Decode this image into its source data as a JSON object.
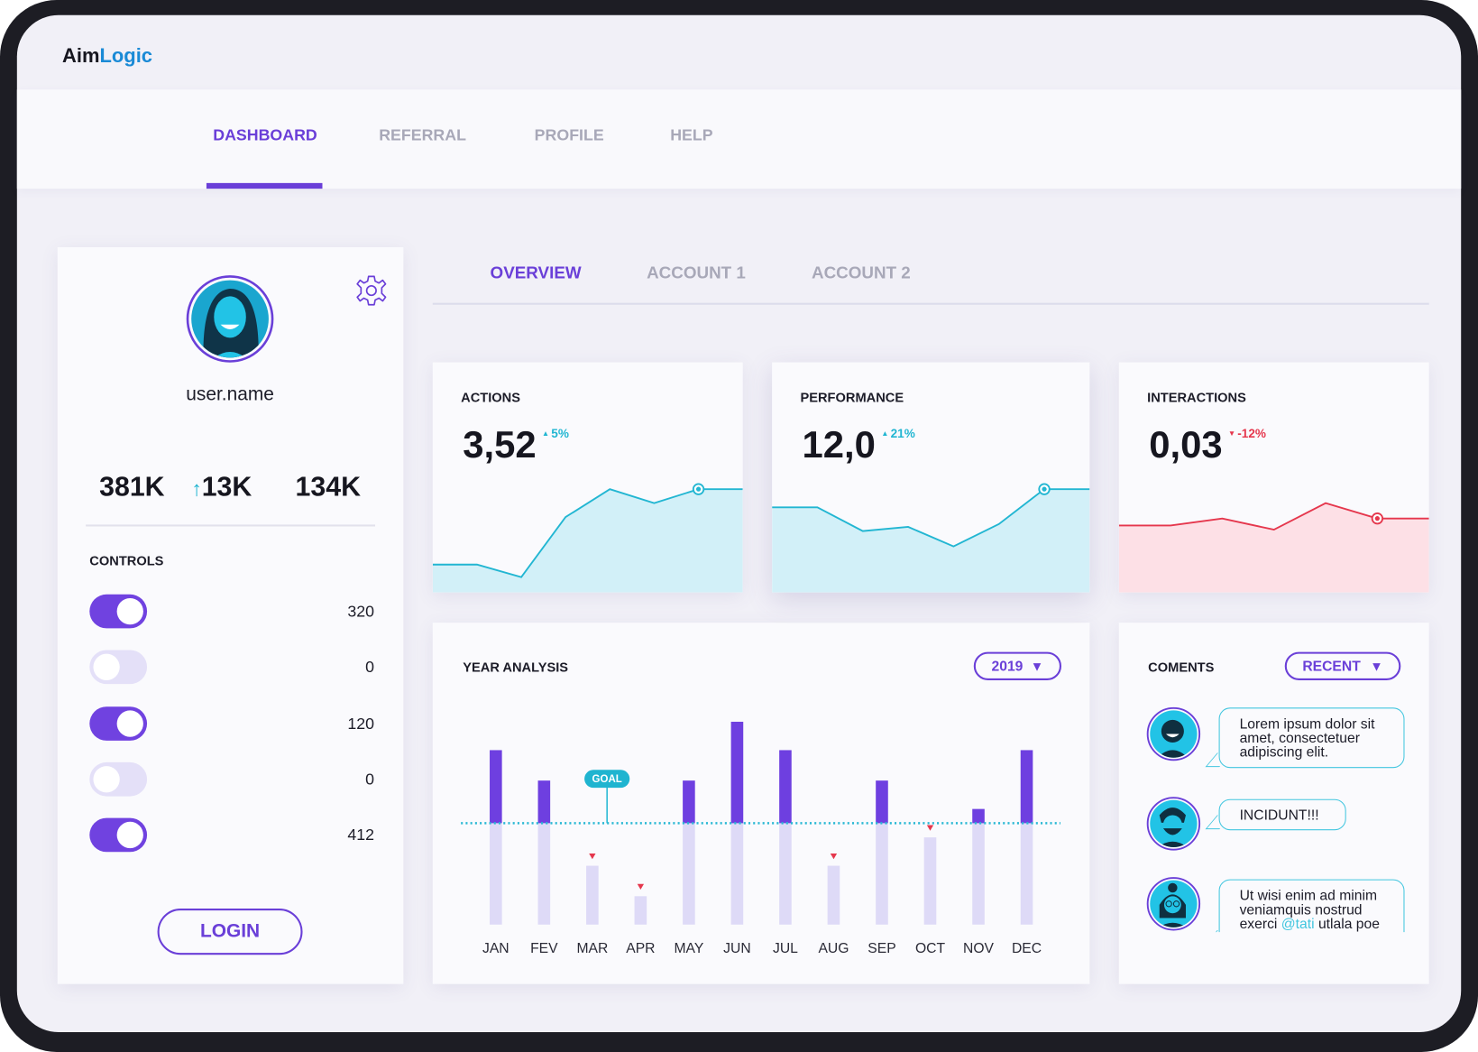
{
  "brand": {
    "part1": "Aim",
    "part2": "Logic"
  },
  "nav": {
    "items": [
      "DASHBOARD",
      "REFERRAL",
      "PROFILE",
      "HELP"
    ],
    "active": 0
  },
  "profile": {
    "username": "user.name",
    "stats": [
      "381K",
      "13K",
      "134K"
    ],
    "controls_title": "CONTROLS",
    "controls": [
      {
        "on": true,
        "value": 320
      },
      {
        "on": false,
        "value": 0
      },
      {
        "on": true,
        "value": 120
      },
      {
        "on": false,
        "value": 0
      },
      {
        "on": true,
        "value": 412
      }
    ],
    "login": "LOGIN"
  },
  "tabs": {
    "items": [
      "OVERVIEW",
      "ACCOUNT 1",
      "ACCOUNT 2"
    ],
    "active": 0
  },
  "kpis": [
    {
      "title": "ACTIONS",
      "value": "3,52",
      "change": "5%",
      "trend": "up",
      "series": [
        20,
        20,
        11,
        54,
        74,
        64,
        74,
        74
      ],
      "highlight": 6,
      "ylim": [
        0,
        100
      ]
    },
    {
      "title": "PERFORMANCE",
      "value": "12,0",
      "change": "21%",
      "trend": "up",
      "series": [
        61,
        61,
        44,
        47,
        33,
        49,
        74,
        74
      ],
      "highlight": 6,
      "ylim": [
        0,
        100
      ]
    },
    {
      "title": "INTERACTIONS",
      "value": "0,03",
      "change": "-12%",
      "trend": "down",
      "series": [
        48,
        48,
        53,
        45,
        64,
        53,
        53
      ],
      "highlight": 5,
      "ylim": [
        0,
        100
      ]
    }
  ],
  "year_analysis": {
    "title": "YEAR ANALYSIS",
    "year": "2019",
    "categories": [
      "JAN",
      "FEV",
      "MAR",
      "APR",
      "MAY",
      "JUN",
      "JUL",
      "AUG",
      "SEP",
      "OCT",
      "NOV",
      "DEC"
    ],
    "values": [
      86,
      71,
      29,
      14,
      71,
      100,
      86,
      29,
      71,
      43,
      57,
      86
    ],
    "goal": 50,
    "goal_label": "GOAL",
    "ylim": [
      0,
      100
    ]
  },
  "comments": {
    "title": "COMENTS",
    "filter": "RECENT",
    "items": [
      {
        "parts": [
          "Lorem ipsum dolor sit amet, consectetuer adipiscing elit."
        ]
      },
      {
        "parts": [
          "INCIDUNT!!!"
        ]
      },
      {
        "parts": [
          "Ut wisi enim ad minim veniamquis nostrud exerci ",
          "@tati",
          " utlala poe"
        ],
        "mention": 1
      }
    ]
  }
}
